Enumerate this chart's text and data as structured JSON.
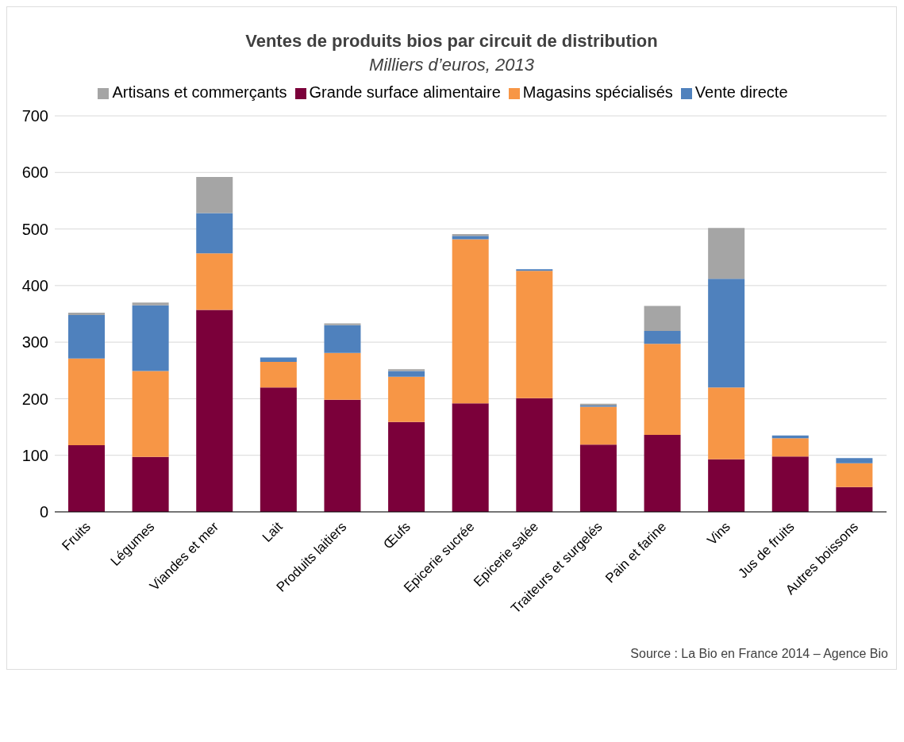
{
  "chart_data": {
    "type": "bar",
    "title": "Ventes de produits bios par circuit de distribution",
    "subtitle": "Milliers d’euros, 2013",
    "categories": [
      "Fruits",
      "Légumes",
      "Viandes et mer",
      "Lait",
      "Produits laitiers",
      "Œufs",
      "Epicerie sucrée",
      "Epicerie salée",
      "Traiteurs et surgelés",
      "Pain et farine",
      "Vins",
      "Jus de fruits",
      "Autres boissons"
    ],
    "stacked": true,
    "ylim": [
      0,
      700
    ],
    "yticks": [
      0,
      100,
      200,
      300,
      400,
      500,
      600,
      700
    ],
    "grid": "y",
    "legend": "top",
    "series": [
      {
        "name": "Grande surface alimentaire",
        "color": "#7b003a",
        "values": [
          118,
          97,
          357,
          220,
          198,
          159,
          192,
          201,
          119,
          136,
          93,
          98,
          44
        ]
      },
      {
        "name": "Magasins spécialisés",
        "color": "#f79646",
        "values": [
          153,
          152,
          100,
          45,
          83,
          80,
          290,
          225,
          67,
          161,
          127,
          32,
          42
        ]
      },
      {
        "name": "Vente directe",
        "color": "#4f81bd",
        "values": [
          77,
          116,
          71,
          8,
          49,
          10,
          6,
          3,
          2,
          23,
          192,
          5,
          9
        ]
      },
      {
        "name": "Artisans et commerçants",
        "color": "#a5a5a5",
        "values": [
          4,
          5,
          64,
          null,
          3,
          3,
          3,
          null,
          3,
          44,
          90,
          null,
          null
        ]
      }
    ],
    "annotations": [
      "Source : La Bio en France 2014 – Agence Bio"
    ]
  }
}
